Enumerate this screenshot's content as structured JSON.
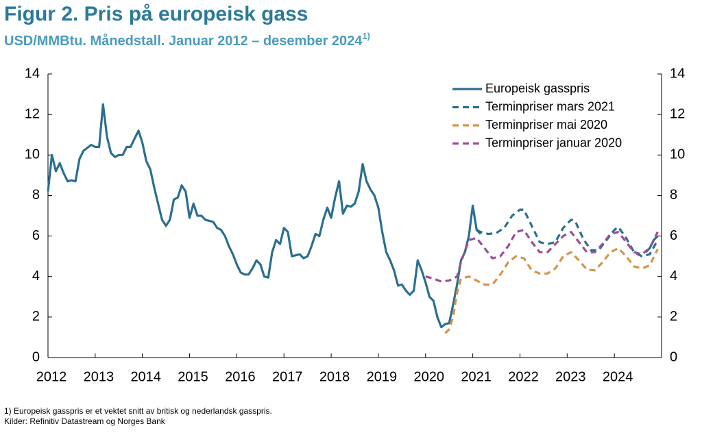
{
  "chart_data": {
    "type": "line",
    "title": "Figur 2. Pris på europeisk gass",
    "subtitle": "USD/MMBtu. Månedstall. Januar 2012 – desember 2024",
    "subtitle_note": "1)",
    "notes": [
      "1) Europeisk gasspris er et vektet snitt av britisk og nederlandsk gasspris.",
      "Kilder: Refinitiv Datastream og Norges Bank"
    ],
    "xlim": [
      2012,
      2025
    ],
    "xticks": [
      2012,
      2013,
      2014,
      2015,
      2016,
      2017,
      2018,
      2019,
      2020,
      2021,
      2022,
      2023,
      2024
    ],
    "ylim": [
      0,
      14
    ],
    "yticks": [
      0,
      2,
      4,
      6,
      8,
      10,
      12,
      14
    ],
    "y2lim": [
      0,
      14
    ],
    "y2ticks": [
      0,
      2,
      4,
      6,
      8,
      10,
      12,
      14
    ],
    "grid": false,
    "legend": "upper right",
    "series": [
      {
        "name": "Europeisk gasspris",
        "color": "#2a6f8f",
        "dash": false,
        "x": [
          2012,
          2012.083,
          2012.167,
          2012.25,
          2012.333,
          2012.417,
          2012.5,
          2012.583,
          2012.667,
          2012.75,
          2012.833,
          2012.917,
          2013,
          2013.083,
          2013.167,
          2013.25,
          2013.333,
          2013.417,
          2013.5,
          2013.583,
          2013.667,
          2013.75,
          2013.833,
          2013.917,
          2014,
          2014.083,
          2014.167,
          2014.25,
          2014.333,
          2014.417,
          2014.5,
          2014.583,
          2014.667,
          2014.75,
          2014.833,
          2014.917,
          2015,
          2015.083,
          2015.167,
          2015.25,
          2015.333,
          2015.417,
          2015.5,
          2015.583,
          2015.667,
          2015.75,
          2015.833,
          2015.917,
          2016,
          2016.083,
          2016.167,
          2016.25,
          2016.333,
          2016.417,
          2016.5,
          2016.583,
          2016.667,
          2016.75,
          2016.833,
          2016.917,
          2017,
          2017.083,
          2017.167,
          2017.25,
          2017.333,
          2017.417,
          2017.5,
          2017.583,
          2017.667,
          2017.75,
          2017.833,
          2017.917,
          2018,
          2018.083,
          2018.167,
          2018.25,
          2018.333,
          2018.417,
          2018.5,
          2018.583,
          2018.667,
          2018.75,
          2018.833,
          2018.917,
          2019,
          2019.083,
          2019.167,
          2019.25,
          2019.333,
          2019.417,
          2019.5,
          2019.583,
          2019.667,
          2019.75,
          2019.833,
          2019.917,
          2020,
          2020.083,
          2020.167,
          2020.25,
          2020.333,
          2020.417,
          2020.5,
          2020.583,
          2020.667,
          2020.75,
          2020.833,
          2020.917,
          2021,
          2021.083,
          2021.167,
          2021.25,
          2024.667,
          2024.75,
          2024.833,
          2024.917
        ],
        "values": [
          8.2,
          10.0,
          9.2,
          9.6,
          9.1,
          8.7,
          8.75,
          8.7,
          9.8,
          10.2,
          10.35,
          10.5,
          10.4,
          10.4,
          12.5,
          10.9,
          10.1,
          9.9,
          10.0,
          10.0,
          10.4,
          10.4,
          10.8,
          11.2,
          10.6,
          9.7,
          9.3,
          8.4,
          7.6,
          6.8,
          6.5,
          6.8,
          7.8,
          7.9,
          8.5,
          8.2,
          6.9,
          7.6,
          7.0,
          7.0,
          6.8,
          6.75,
          6.7,
          6.4,
          6.3,
          6.0,
          5.5,
          5.1,
          4.6,
          4.2,
          4.1,
          4.1,
          4.4,
          4.8,
          4.6,
          4.0,
          3.95,
          5.2,
          5.8,
          5.6,
          6.4,
          6.2,
          5.0,
          5.05,
          5.1,
          4.9,
          5.0,
          5.5,
          6.1,
          6.0,
          6.8,
          7.4,
          6.9,
          7.9,
          8.7,
          7.1,
          7.5,
          7.45,
          7.6,
          8.2,
          9.55,
          8.7,
          8.3,
          8.0,
          7.4,
          6.2,
          5.2,
          4.8,
          4.3,
          3.55,
          3.6,
          3.3,
          3.1,
          3.3,
          4.8,
          4.3,
          3.7,
          3.0,
          2.8,
          2.0,
          1.5,
          1.65,
          1.7,
          2.6,
          3.6,
          4.8,
          5.2,
          6.0,
          7.5,
          6.3,
          6.1,
          null,
          5.2,
          5.4,
          5.8,
          6.0
        ]
      },
      {
        "name": "Terminpriser mars 2021",
        "color": "#2a6f8f",
        "dash": true,
        "x": [
          2021.083,
          2021.167,
          2021.333,
          2021.5,
          2021.667,
          2021.833,
          2022,
          2022.083,
          2022.25,
          2022.417,
          2022.583,
          2022.75,
          2022.917,
          2023.083,
          2023.167,
          2023.333,
          2023.5,
          2023.667,
          2023.833,
          2024,
          2024.083,
          2024.25,
          2024.417,
          2024.583,
          2024.75,
          2024.917
        ],
        "values": [
          6.3,
          6.2,
          6.1,
          6.15,
          6.4,
          7.0,
          7.3,
          7.3,
          6.5,
          5.7,
          5.6,
          5.7,
          6.4,
          6.8,
          6.75,
          5.9,
          5.3,
          5.3,
          5.8,
          6.3,
          6.45,
          5.9,
          5.2,
          5.0,
          5.1,
          5.8
        ]
      },
      {
        "name": "Terminpriser mai 2020",
        "color": "#d4944a",
        "dash": true,
        "x": [
          2020.417,
          2020.5,
          2020.583,
          2020.667,
          2020.75,
          2020.917,
          2021.083,
          2021.25,
          2021.417,
          2021.583,
          2021.75,
          2021.917,
          2022.083,
          2022.25,
          2022.417,
          2022.583,
          2022.75,
          2022.917,
          2023.083,
          2023.25,
          2023.417,
          2023.583,
          2023.75,
          2023.917,
          2024.083,
          2024.25,
          2024.417,
          2024.583,
          2024.75,
          2024.917
        ],
        "values": [
          1.2,
          1.4,
          2.0,
          3.2,
          3.9,
          4.0,
          3.8,
          3.6,
          3.6,
          4.1,
          4.7,
          5.0,
          4.9,
          4.3,
          4.15,
          4.15,
          4.4,
          5.0,
          5.2,
          4.8,
          4.35,
          4.3,
          4.7,
          5.2,
          5.4,
          5.0,
          4.5,
          4.4,
          4.55,
          5.35
        ]
      },
      {
        "name": "Terminpriser januar 2020",
        "color": "#9a4d94",
        "dash": true,
        "x": [
          2020,
          2020.167,
          2020.333,
          2020.5,
          2020.667,
          2020.75,
          2020.917,
          2021.083,
          2021.25,
          2021.417,
          2021.583,
          2021.75,
          2021.917,
          2022.083,
          2022.25,
          2022.417,
          2022.583,
          2022.75,
          2022.917,
          2023.083,
          2023.25,
          2023.417,
          2023.583,
          2023.75,
          2023.917,
          2024.083,
          2024.25,
          2024.417,
          2024.583,
          2024.75,
          2024.917
        ],
        "values": [
          4.0,
          3.9,
          3.75,
          3.8,
          4.0,
          4.7,
          5.8,
          5.9,
          5.4,
          4.9,
          5.0,
          5.5,
          6.2,
          6.3,
          5.7,
          5.2,
          5.2,
          5.6,
          6.0,
          6.2,
          5.7,
          5.2,
          5.2,
          5.6,
          6.1,
          6.2,
          5.7,
          5.2,
          5.1,
          5.4,
          6.2
        ]
      }
    ]
  }
}
